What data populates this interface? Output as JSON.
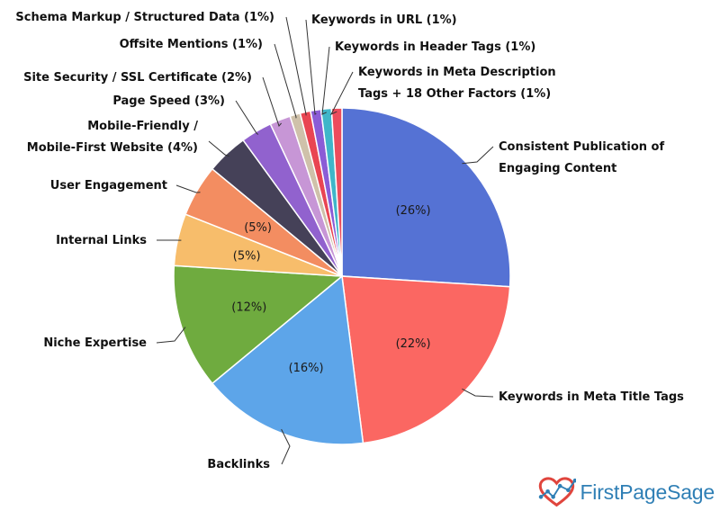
{
  "chart_data": {
    "type": "pie",
    "slices": [
      {
        "label": "Consistent Publication of Engaging Content",
        "label_lines": [
          "Consistent Publication of",
          "Engaging Content"
        ],
        "value": 26,
        "value_label": "(26%)",
        "color": "#5572d4"
      },
      {
        "label": "Keywords in Meta Title Tags",
        "label_lines": [
          "Keywords in Meta Title Tags"
        ],
        "value": 22,
        "value_label": "(22%)",
        "color": "#fb6762"
      },
      {
        "label": "Backlinks",
        "label_lines": [
          "Backlinks"
        ],
        "value": 16,
        "value_label": "(16%)",
        "color": "#5da5e9"
      },
      {
        "label": "Niche Expertise",
        "label_lines": [
          "Niche Expertise"
        ],
        "value": 12,
        "value_label": "(12%)",
        "color": "#6fab3f"
      },
      {
        "label": "Internal Links",
        "label_lines": [
          "Internal Links"
        ],
        "value": 5,
        "value_label": "(5%)",
        "color": "#f7bd6b"
      },
      {
        "label": "User Engagement",
        "label_lines": [
          "User Engagement"
        ],
        "value": 5,
        "value_label": "(5%)",
        "color": "#f38d61"
      },
      {
        "label": "Mobile-Friendly / Mobile-First Website (4%)",
        "label_lines": [
          "Mobile-Friendly /",
          "Mobile-First Website (4%)"
        ],
        "value": 4,
        "color": "#454158"
      },
      {
        "label": "Page Speed (3%)",
        "label_lines": [
          "Page Speed (3%)"
        ],
        "value": 3,
        "color": "#9162ce"
      },
      {
        "label": "Site Security / SSL Certificate (2%)",
        "label_lines": [
          "Site Security / SSL Certificate (2%)"
        ],
        "value": 2,
        "color": "#c796d6"
      },
      {
        "label": "Offsite Mentions (1%)",
        "label_lines": [
          "Offsite Mentions (1%)"
        ],
        "value": 1,
        "color": "#cfc1aa"
      },
      {
        "label": "Schema Markup / Structured Data (1%)",
        "label_lines": [
          "Schema Markup / Structured Data (1%)"
        ],
        "value": 1,
        "color": "#e94552"
      },
      {
        "label": "Keywords in URL (1%)",
        "label_lines": [
          "Keywords in URL (1%)"
        ],
        "value": 1,
        "color": "#8b5cd6"
      },
      {
        "label": "Keywords in Header Tags (1%)",
        "label_lines": [
          "Keywords in Header Tags (1%)"
        ],
        "value": 1,
        "color": "#3fb6c9"
      },
      {
        "label": "Keywords in Meta Description Tags + 18 Other Factors (1%)",
        "label_lines": [
          "Keywords in Meta Description",
          "Tags + 18 Other Factors (1%)"
        ],
        "value": 1,
        "color": "#ec4c5c"
      }
    ]
  },
  "logo": {
    "text": "FirstPageSage",
    "icon": "heart-chart-icon",
    "colors": {
      "heart": "#e0453d",
      "text": "#2f7fb5"
    }
  }
}
